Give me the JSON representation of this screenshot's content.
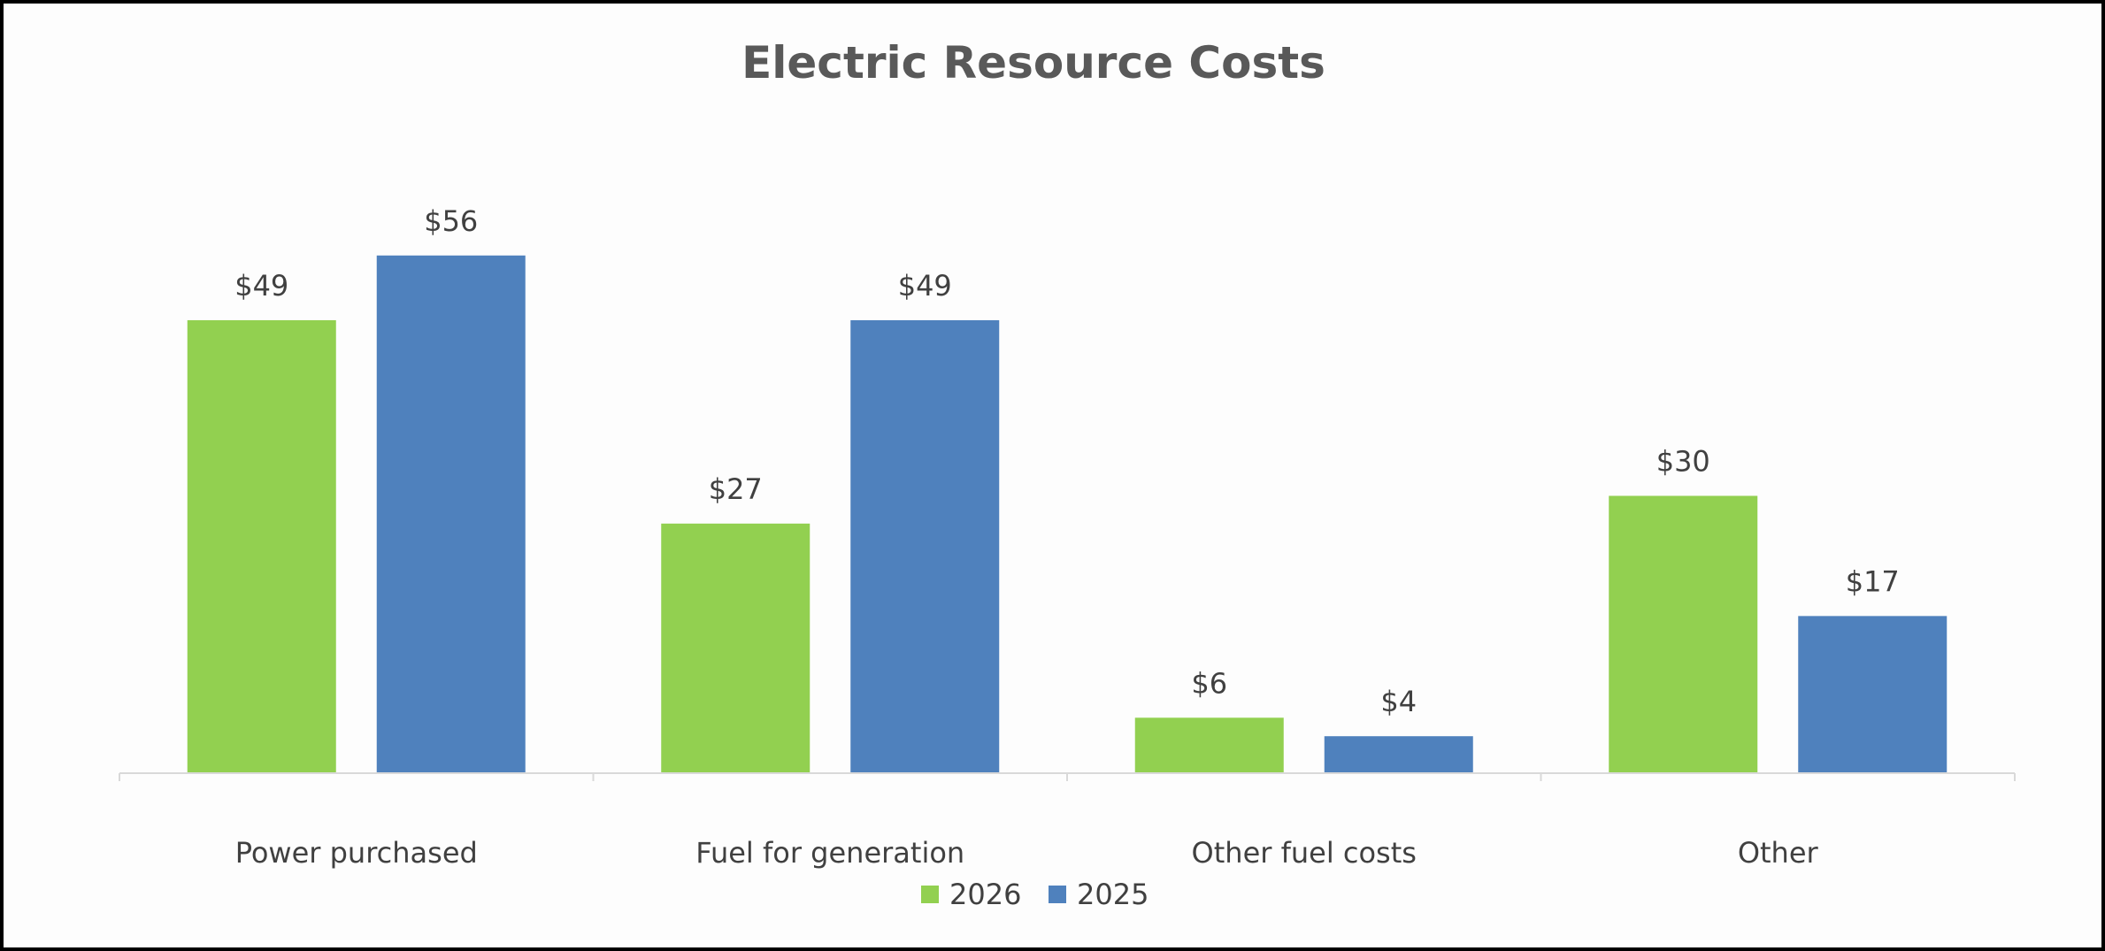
{
  "chart_data": {
    "type": "bar",
    "title": "Electric Resource Costs",
    "xlabel": "",
    "ylabel": "",
    "ylim": [
      0,
      60
    ],
    "grid": false,
    "legend_position": "bottom",
    "value_prefix": "$",
    "categories": [
      "Power purchased",
      "Fuel for generation",
      "Other fuel costs",
      "Other"
    ],
    "series": [
      {
        "name": "2026",
        "color": "#92d050",
        "values": [
          49,
          27,
          6,
          30
        ],
        "labels": [
          "$49",
          "$27",
          "$6",
          "$30"
        ]
      },
      {
        "name": "2025",
        "color": "#4f81bd",
        "values": [
          56,
          49,
          4,
          17
        ],
        "labels": [
          "$56",
          "$49",
          "$4",
          "$17"
        ]
      }
    ]
  }
}
